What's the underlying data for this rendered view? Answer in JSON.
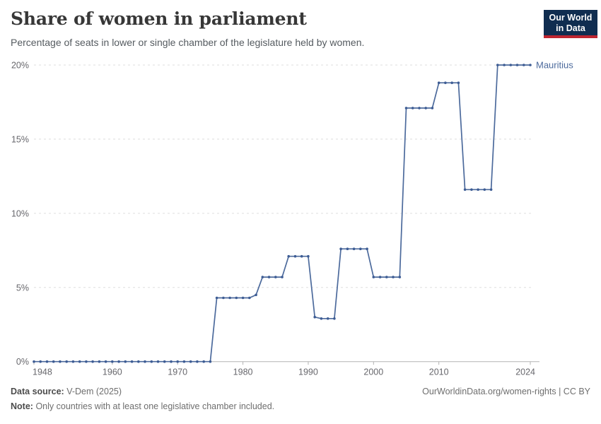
{
  "header": {
    "title": "Share of women in parliament",
    "subtitle": "Percentage of seats in lower or single chamber of the legislature held by women.",
    "logo_line1": "Our World",
    "logo_line2": "in Data"
  },
  "chart_data": {
    "type": "line",
    "title": "Share of women in parliament",
    "entity_label": "Mauritius",
    "unit": "%",
    "xlim": [
      1948,
      2024
    ],
    "ylim": [
      0,
      20
    ],
    "grid": "horizontal dashed",
    "legend_position": "end-of-line label",
    "y_ticks": [
      {
        "value": 0,
        "label": "0%"
      },
      {
        "value": 5,
        "label": "5%"
      },
      {
        "value": 10,
        "label": "10%"
      },
      {
        "value": 15,
        "label": "15%"
      },
      {
        "value": 20,
        "label": "20%"
      }
    ],
    "x_ticks": [
      {
        "value": 1948,
        "label": "1948"
      },
      {
        "value": 1960,
        "label": "1960"
      },
      {
        "value": 1970,
        "label": "1970"
      },
      {
        "value": 1980,
        "label": "1980"
      },
      {
        "value": 1990,
        "label": "1990"
      },
      {
        "value": 2000,
        "label": "2000"
      },
      {
        "value": 2010,
        "label": "2010"
      },
      {
        "value": 2024,
        "label": "2024"
      }
    ],
    "series": [
      {
        "name": "Mauritius",
        "color": "#4c6a9c",
        "points": [
          [
            1948,
            0
          ],
          [
            1949,
            0
          ],
          [
            1950,
            0
          ],
          [
            1951,
            0
          ],
          [
            1952,
            0
          ],
          [
            1953,
            0
          ],
          [
            1954,
            0
          ],
          [
            1955,
            0
          ],
          [
            1956,
            0
          ],
          [
            1957,
            0
          ],
          [
            1958,
            0
          ],
          [
            1959,
            0
          ],
          [
            1960,
            0
          ],
          [
            1961,
            0
          ],
          [
            1962,
            0
          ],
          [
            1963,
            0
          ],
          [
            1964,
            0
          ],
          [
            1965,
            0
          ],
          [
            1966,
            0
          ],
          [
            1967,
            0
          ],
          [
            1968,
            0
          ],
          [
            1969,
            0
          ],
          [
            1970,
            0
          ],
          [
            1971,
            0
          ],
          [
            1972,
            0
          ],
          [
            1973,
            0
          ],
          [
            1974,
            0
          ],
          [
            1975,
            0
          ],
          [
            1976,
            4.3
          ],
          [
            1977,
            4.3
          ],
          [
            1978,
            4.3
          ],
          [
            1979,
            4.3
          ],
          [
            1980,
            4.3
          ],
          [
            1981,
            4.3
          ],
          [
            1982,
            4.5
          ],
          [
            1983,
            5.7
          ],
          [
            1984,
            5.7
          ],
          [
            1985,
            5.7
          ],
          [
            1986,
            5.7
          ],
          [
            1987,
            7.1
          ],
          [
            1988,
            7.1
          ],
          [
            1989,
            7.1
          ],
          [
            1990,
            7.1
          ],
          [
            1991,
            3.0
          ],
          [
            1992,
            2.9
          ],
          [
            1993,
            2.9
          ],
          [
            1994,
            2.9
          ],
          [
            1995,
            7.6
          ],
          [
            1996,
            7.6
          ],
          [
            1997,
            7.6
          ],
          [
            1998,
            7.6
          ],
          [
            1999,
            7.6
          ],
          [
            2000,
            5.7
          ],
          [
            2001,
            5.7
          ],
          [
            2002,
            5.7
          ],
          [
            2003,
            5.7
          ],
          [
            2004,
            5.7
          ],
          [
            2005,
            17.1
          ],
          [
            2006,
            17.1
          ],
          [
            2007,
            17.1
          ],
          [
            2008,
            17.1
          ],
          [
            2009,
            17.1
          ],
          [
            2010,
            18.8
          ],
          [
            2011,
            18.8
          ],
          [
            2012,
            18.8
          ],
          [
            2013,
            18.8
          ],
          [
            2014,
            11.6
          ],
          [
            2015,
            11.6
          ],
          [
            2016,
            11.6
          ],
          [
            2017,
            11.6
          ],
          [
            2018,
            11.6
          ],
          [
            2019,
            20
          ],
          [
            2020,
            20
          ],
          [
            2021,
            20
          ],
          [
            2022,
            20
          ],
          [
            2023,
            20
          ],
          [
            2024,
            20
          ]
        ]
      }
    ]
  },
  "colors": {
    "line": "#4c6a9c",
    "marker": "#3d5c94",
    "grid": "#dedede",
    "axis": "#b3b3b3",
    "tick_text": "#67676c",
    "logo_bg": "#102d50",
    "logo_red": "#bf2530"
  },
  "footer": {
    "data_source_label": "Data source:",
    "data_source_value": "V-Dem (2025)",
    "note_label": "Note:",
    "note_value": "Only countries with at least one legislative chamber included.",
    "link_text": "OurWorldinData.org/women-rights | CC BY"
  }
}
